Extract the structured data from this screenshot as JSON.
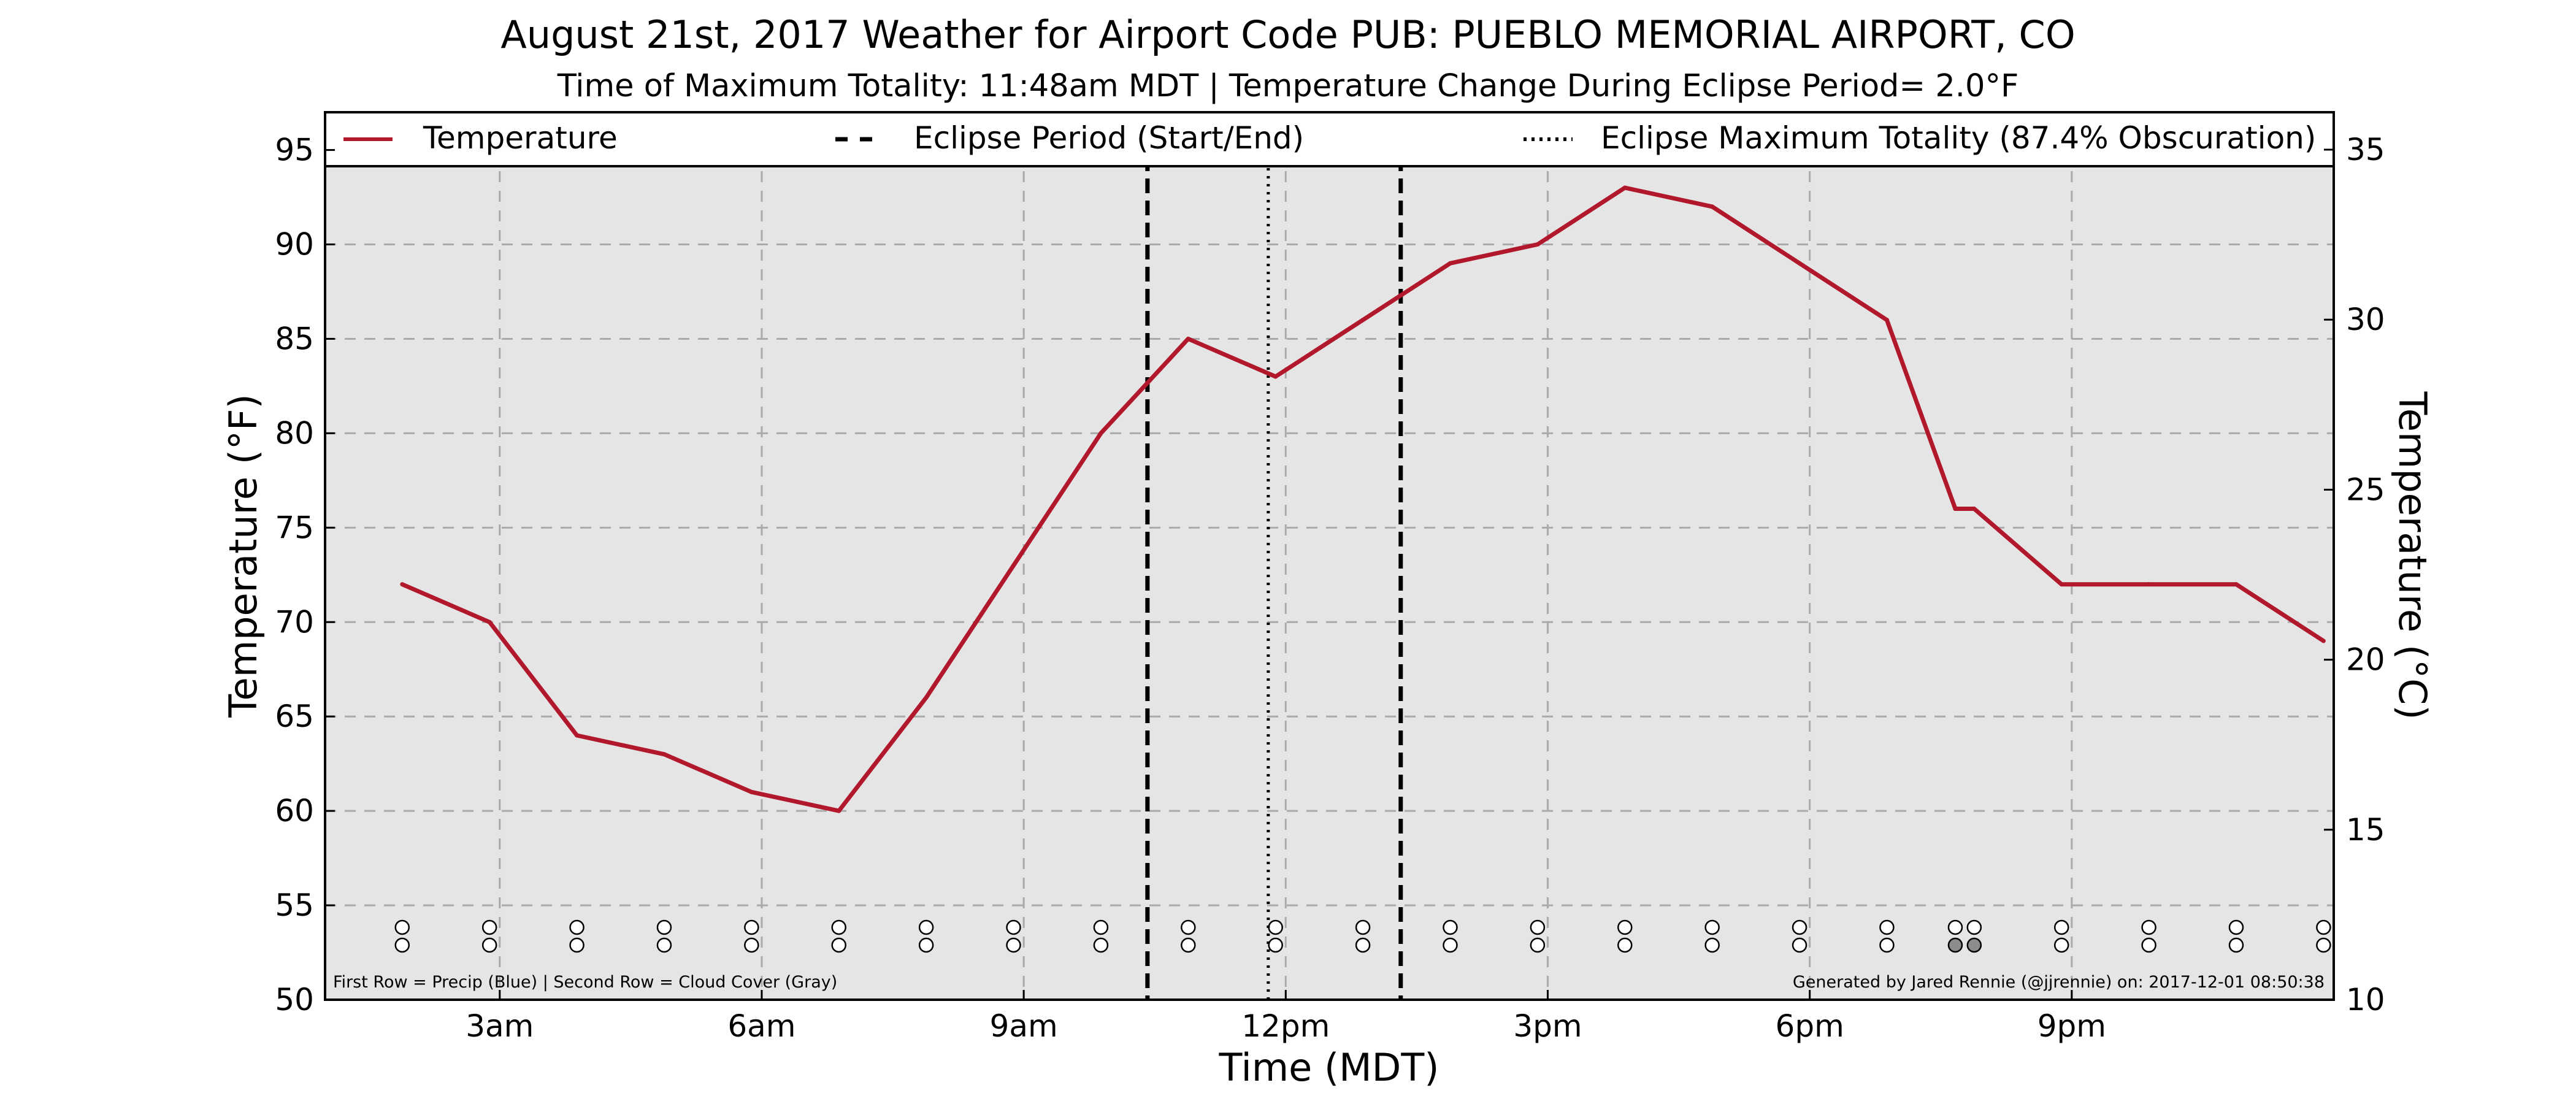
{
  "chart_data": {
    "type": "line",
    "title": "August 21st, 2017 Weather for Airport Code PUB: PUEBLO MEMORIAL AIRPORT, CO",
    "subtitle": "Time of Maximum Totality: 11:48am MDT | Temperature Change During Eclipse Period= 2.0°F",
    "xlabel": "Time (MDT)",
    "ylabel": "Temperature (°F)",
    "y2label": "Temperature (°C)",
    "xlim": [
      "01:00",
      "24:00"
    ],
    "ylim": [
      50,
      97
    ],
    "y2lim": [
      10,
      36.1
    ],
    "x_ticks": [
      {
        "t": "03:00",
        "label": "3am"
      },
      {
        "t": "06:00",
        "label": "6am"
      },
      {
        "t": "09:00",
        "label": "9am"
      },
      {
        "t": "12:00",
        "label": "12pm"
      },
      {
        "t": "15:00",
        "label": "3pm"
      },
      {
        "t": "18:00",
        "label": "6pm"
      },
      {
        "t": "21:00",
        "label": "9pm"
      }
    ],
    "y_ticks": [
      50,
      55,
      60,
      65,
      70,
      75,
      80,
      85,
      90,
      95
    ],
    "y2_ticks": [
      10,
      15,
      20,
      25,
      30,
      35
    ],
    "grid": true,
    "legend_placement": "top",
    "legend": [
      {
        "label": "Temperature",
        "style": "solid",
        "color": "#b2182b"
      },
      {
        "label": "Eclipse Period (Start/End)",
        "style": "dashed",
        "color": "#000000"
      },
      {
        "label": "Eclipse Maximum Totality (87.4% Obscuration)",
        "style": "dotted",
        "color": "#000000"
      }
    ],
    "series": [
      {
        "name": "Temperature",
        "color": "#b2182b",
        "x": [
          "01:53",
          "02:53",
          "03:53",
          "04:53",
          "05:53",
          "06:53",
          "07:53",
          "08:53",
          "09:53",
          "10:53",
          "11:53",
          "12:53",
          "13:53",
          "14:53",
          "15:53",
          "16:53",
          "17:53",
          "18:53",
          "19:40",
          "19:53",
          "20:53",
          "21:53",
          "22:53",
          "23:53"
        ],
        "y": [
          72,
          70,
          64,
          63,
          61,
          60,
          66,
          73,
          80,
          85,
          83,
          86,
          89,
          90,
          93,
          92,
          89,
          86,
          76,
          76,
          72,
          72,
          72,
          69
        ]
      }
    ],
    "eclipse_period": [
      "10:25",
      "13:19"
    ],
    "eclipse_max": "11:48",
    "obs_times": [
      "01:53",
      "02:53",
      "03:53",
      "04:53",
      "05:53",
      "06:53",
      "07:53",
      "08:53",
      "09:53",
      "10:53",
      "11:53",
      "12:53",
      "13:53",
      "14:53",
      "15:53",
      "16:53",
      "17:53",
      "18:53",
      "19:40",
      "19:53",
      "20:53",
      "21:53",
      "22:53",
      "23:53"
    ],
    "precip_row": [
      "none",
      "none",
      "none",
      "none",
      "none",
      "none",
      "none",
      "none",
      "none",
      "none",
      "none",
      "none",
      "none",
      "none",
      "none",
      "none",
      "none",
      "none",
      "none",
      "none",
      "none",
      "none",
      "none",
      "none"
    ],
    "cloud_row": [
      "clear",
      "clear",
      "clear",
      "clear",
      "clear",
      "clear",
      "clear",
      "clear",
      "clear",
      "clear",
      "clear",
      "clear",
      "clear",
      "clear",
      "clear",
      "clear",
      "clear",
      "clear",
      "cloudy",
      "cloudy",
      "clear",
      "clear",
      "clear",
      "clear"
    ],
    "annotation_left": "First Row = Precip (Blue) | Second Row = Cloud Cover (Gray)",
    "annotation_right": "Generated by Jared Rennie (@jjrennie) on: 2017-12-01 08:50:38"
  }
}
